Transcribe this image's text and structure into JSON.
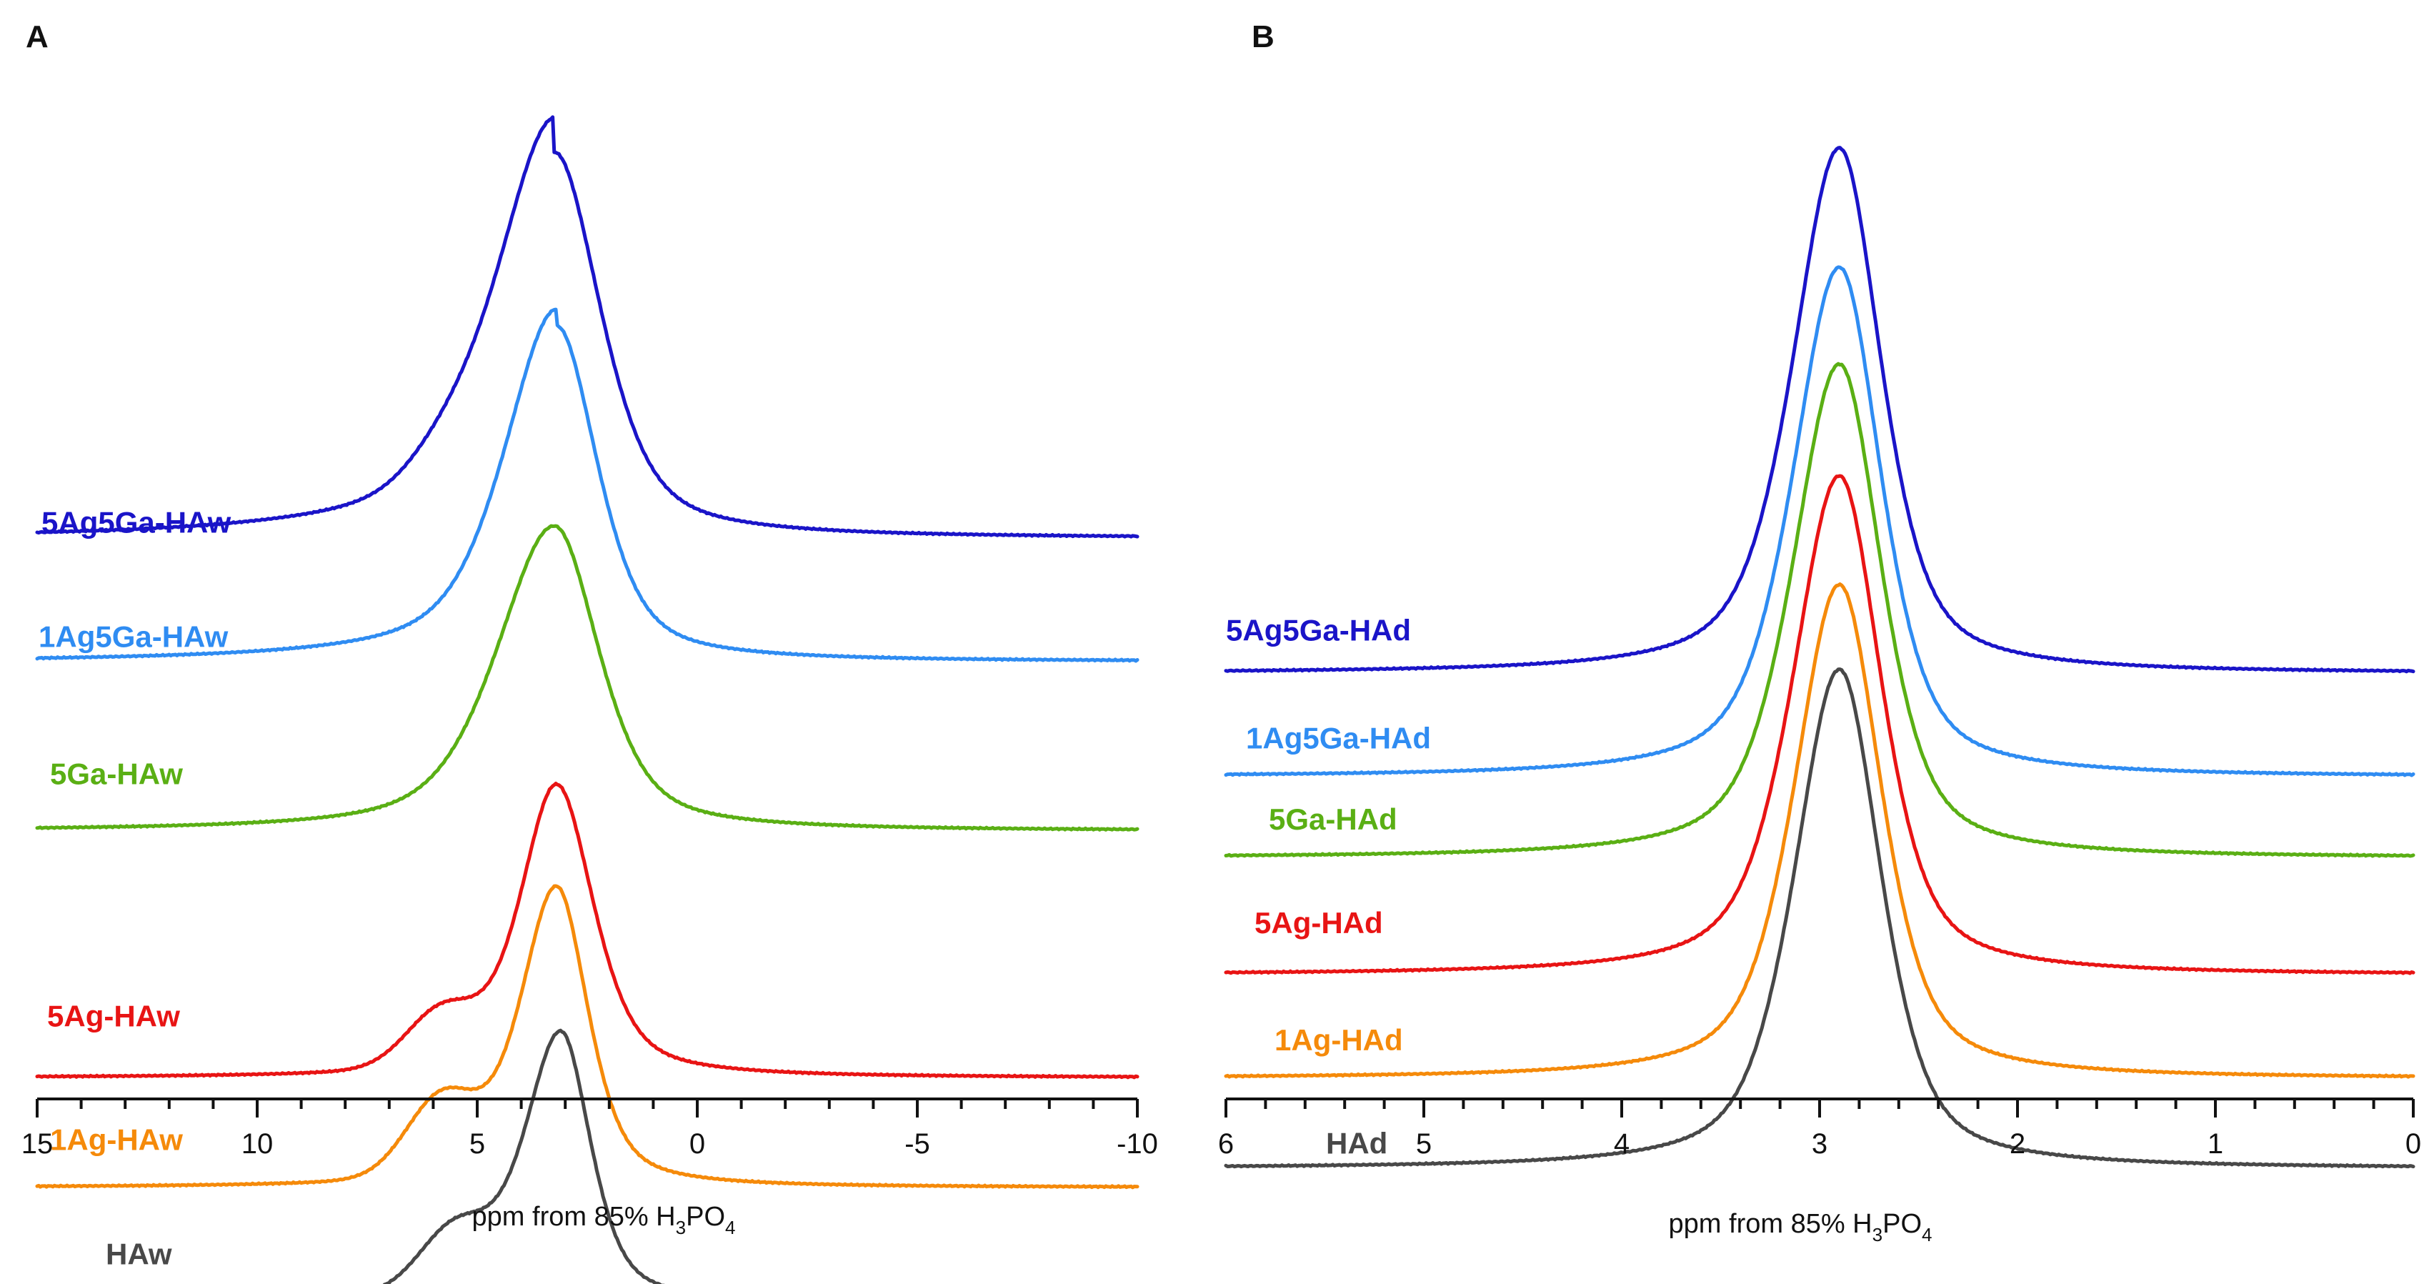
{
  "chart_data": [
    {
      "panel": "A",
      "type": "line",
      "xlabel_prefix": "ppm from 85% H",
      "xlabel_sub1": "3",
      "xlabel_mid": "PO",
      "xlabel_sub2": "4",
      "xlim": [
        15,
        -10
      ],
      "major_ticks": [
        15,
        10,
        5,
        0,
        -5,
        -10
      ],
      "tick_labels": [
        "15",
        "10",
        "5",
        "0",
        "-5",
        "-10"
      ],
      "minor_step": 1,
      "series": [
        {
          "name": "5Ag5Ga-HAw",
          "color": "#1a14c8",
          "baseline": 1.0,
          "peak_x": 3.25,
          "height": 1.0,
          "hwl": 1.6,
          "hwr": 1.25,
          "tailL": 0.09,
          "tailR": 0.0,
          "shoulder": 0.05,
          "shoulder_x": 5.8,
          "label_level": 1.05
        },
        {
          "name": "1Ag5Ga-HAw",
          "color": "#2f8cf2",
          "baseline": 2.35,
          "peak_x": 3.2,
          "height": 1.0,
          "hwl": 1.4,
          "hwr": 1.1,
          "tailL": 0.05,
          "tailR": 0.0,
          "shoulder": 0.0,
          "shoulder_x": 5.5,
          "label_level": 2.3
        },
        {
          "name": "5Ga-HAw",
          "color": "#5aaf14",
          "baseline": 4.2,
          "peak_x": 3.25,
          "height": 1.0,
          "hwl": 1.55,
          "hwr": 1.2,
          "tailL": 0.0,
          "tailR": 0.0,
          "shoulder": 0.0,
          "shoulder_x": 5.5,
          "label_level": 3.8
        },
        {
          "name": "5Ag-HAw",
          "color": "#e81414",
          "baseline": 6.9,
          "peak_x": 3.2,
          "height": 1.0,
          "hwl": 1.0,
          "hwr": 1.0,
          "tailL": 0.0,
          "tailR": 0.0,
          "shoulder": 0.18,
          "shoulder_x": 5.8,
          "label_level": 6.45
        },
        {
          "name": "1Ag-HAw",
          "color": "#f58a0a",
          "baseline": 8.1,
          "peak_x": 3.2,
          "height": 1.0,
          "hwl": 1.0,
          "hwr": 0.85,
          "tailL": 0.0,
          "tailR": 0.0,
          "shoulder": 0.25,
          "shoulder_x": 5.8,
          "label_level": 7.8
        },
        {
          "name": "HAw",
          "color": "#484848",
          "baseline": 9.35,
          "peak_x": 3.1,
          "height": 1.0,
          "hwl": 1.0,
          "hwr": 0.8,
          "tailL": 0.0,
          "tailR": 0.0,
          "shoulder": 0.22,
          "shoulder_x": 5.5,
          "label_level": 9.05
        }
      ]
    },
    {
      "panel": "B",
      "type": "line",
      "xlabel_prefix": "ppm from 85% H",
      "xlabel_sub1": "3",
      "xlabel_mid": "PO",
      "xlabel_sub2": "4",
      "xlim": [
        6,
        0
      ],
      "major_ticks": [
        6,
        5,
        4,
        3,
        2,
        1,
        0
      ],
      "tick_labels": [
        "6",
        "5",
        "4",
        "3",
        "2",
        "1",
        "0"
      ],
      "minor_step": 0.2,
      "series": [
        {
          "name": "5Ag5Ga-HAd",
          "color": "#1a14c8",
          "baseline": 1.0,
          "peak_x": 2.9,
          "height": 1.0,
          "hwl": 0.28,
          "hwr": 0.25,
          "label_level": 0.75
        },
        {
          "name": "1Ag5Ga-HAd",
          "color": "#2f8cf2",
          "baseline": 2.15,
          "peak_x": 2.9,
          "height": 1.0,
          "hwl": 0.28,
          "hwr": 0.25,
          "label_level": 1.95
        },
        {
          "name": "5Ga-HAd",
          "color": "#5aaf14",
          "baseline": 3.05,
          "peak_x": 2.9,
          "height": 1.0,
          "hwl": 0.28,
          "hwr": 0.25,
          "label_level": 2.85
        },
        {
          "name": "5Ag-HAd",
          "color": "#e81414",
          "baseline": 4.35,
          "peak_x": 2.9,
          "height": 1.0,
          "hwl": 0.28,
          "hwr": 0.25,
          "label_level": 4.0
        },
        {
          "name": "1Ag-HAd",
          "color": "#f58a0a",
          "baseline": 5.5,
          "peak_x": 2.9,
          "height": 1.0,
          "hwl": 0.27,
          "hwr": 0.25,
          "label_level": 5.3
        },
        {
          "name": "HAd",
          "color": "#484848",
          "baseline": 6.5,
          "peak_x": 2.9,
          "height": 1.0,
          "hwl": 0.27,
          "hwr": 0.25,
          "label_level": 6.45
        }
      ]
    }
  ]
}
